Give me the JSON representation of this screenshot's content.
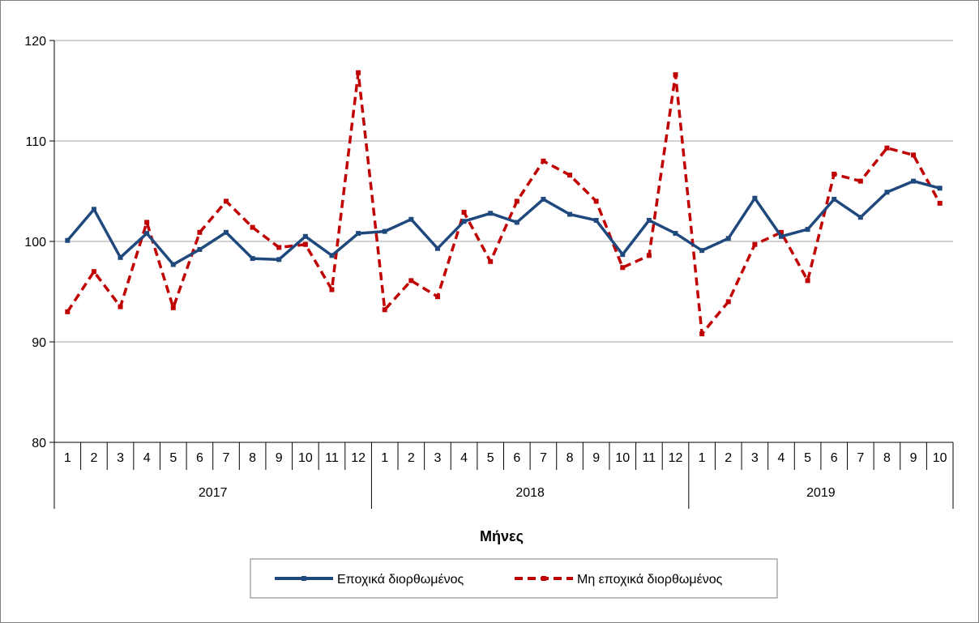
{
  "chart_data": {
    "type": "line",
    "title": "",
    "xlabel": "Μήνες",
    "ylabel": "",
    "ylim": [
      80,
      120
    ],
    "yticks": [
      80,
      90,
      100,
      110,
      120
    ],
    "grid": true,
    "legend_position": "bottom",
    "months": [
      "1",
      "2",
      "3",
      "4",
      "5",
      "6",
      "7",
      "8",
      "9",
      "10",
      "11",
      "12",
      "1",
      "2",
      "3",
      "4",
      "5",
      "6",
      "7",
      "8",
      "9",
      "10",
      "11",
      "12",
      "1",
      "2",
      "3",
      "4",
      "5",
      "6",
      "7",
      "8",
      "9",
      "10"
    ],
    "years": [
      {
        "label": "2017",
        "count": 12
      },
      {
        "label": "2018",
        "count": 12
      },
      {
        "label": "2019",
        "count": 10
      }
    ],
    "series": [
      {
        "name": "Εποχικά διορθωμένος",
        "color": "#1f497d",
        "style": "solid",
        "values": [
          100.1,
          103.2,
          98.4,
          100.8,
          97.7,
          99.2,
          100.9,
          98.3,
          98.2,
          100.5,
          98.6,
          100.8,
          101.0,
          102.2,
          99.3,
          102.0,
          102.8,
          101.9,
          104.2,
          102.7,
          102.1,
          98.7,
          102.1,
          100.8,
          99.1,
          100.3,
          104.3,
          100.5,
          101.2,
          104.2,
          102.4,
          104.9,
          106.0,
          105.3
        ]
      },
      {
        "name": "Μη εποχικά διορθωμένος",
        "color": "#c00000",
        "style": "dashed",
        "values": [
          93.0,
          97.0,
          93.5,
          101.9,
          93.4,
          100.9,
          104.0,
          101.4,
          99.4,
          99.7,
          95.2,
          116.8,
          93.2,
          96.1,
          94.5,
          102.9,
          98.0,
          104.0,
          108.0,
          106.6,
          104.0,
          97.4,
          98.6,
          116.6,
          90.8,
          94.0,
          99.7,
          100.9,
          96.1,
          106.7,
          106.0,
          109.3,
          108.6,
          103.8
        ]
      }
    ]
  }
}
